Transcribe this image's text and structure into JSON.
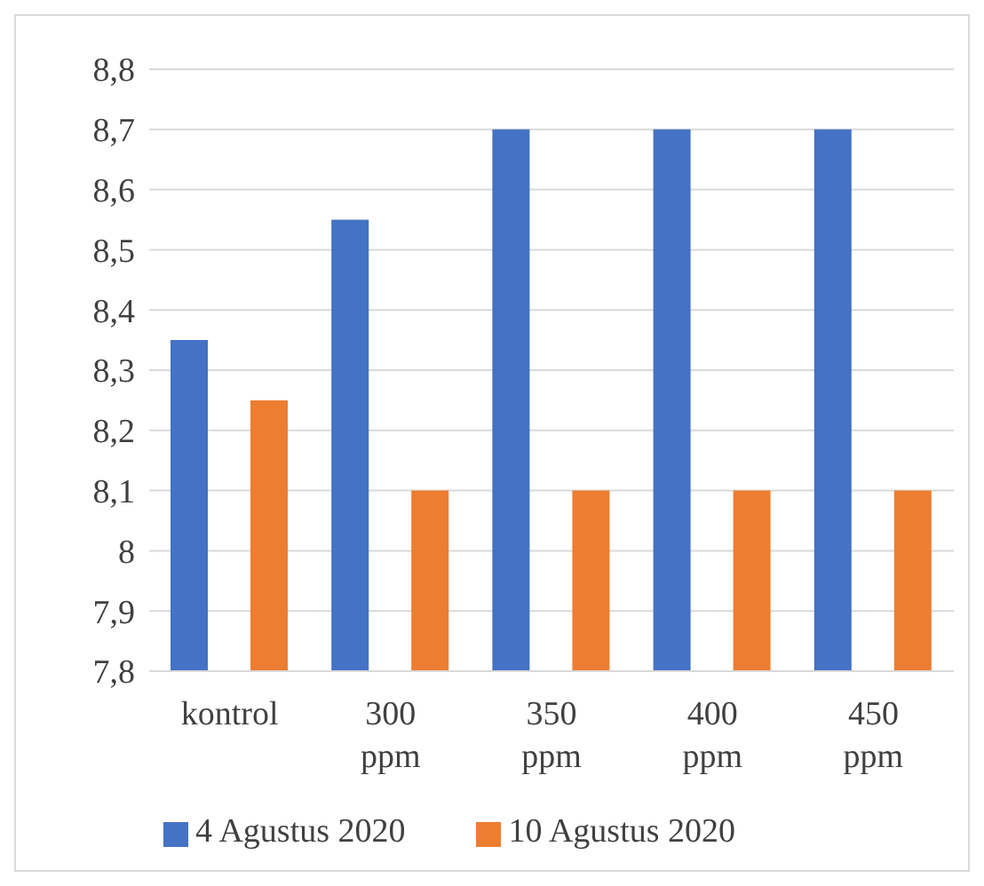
{
  "chart_data": {
    "type": "bar",
    "categories": [
      "kontrol",
      "300 ppm",
      "350 ppm",
      "400 ppm",
      "450 ppm"
    ],
    "series": [
      {
        "name": "4 Agustus 2020",
        "color": "#4472c4",
        "values": [
          8.35,
          8.55,
          8.7,
          8.7,
          8.7
        ]
      },
      {
        "name": "10 Agustus 2020",
        "color": "#ed7d31",
        "values": [
          8.25,
          8.1,
          8.1,
          8.1,
          8.1
        ]
      }
    ],
    "ylim": [
      7.8,
      8.8
    ],
    "yticks": [
      {
        "value": 7.8,
        "label": "7,8"
      },
      {
        "value": 7.9,
        "label": "7,9"
      },
      8,
      {
        "value": 8.1,
        "label": "8,1"
      },
      {
        "value": 8.2,
        "label": "8,2"
      },
      {
        "value": 8.3,
        "label": "8,3"
      },
      {
        "value": 8.4,
        "label": "8,4"
      },
      {
        "value": 8.5,
        "label": "8,5"
      },
      {
        "value": 8.6,
        "label": "8,6"
      },
      {
        "value": 8.7,
        "label": "8,7"
      },
      {
        "value": 8.8,
        "label": "8,8"
      }
    ],
    "grid": "y",
    "legend": "bottom"
  }
}
